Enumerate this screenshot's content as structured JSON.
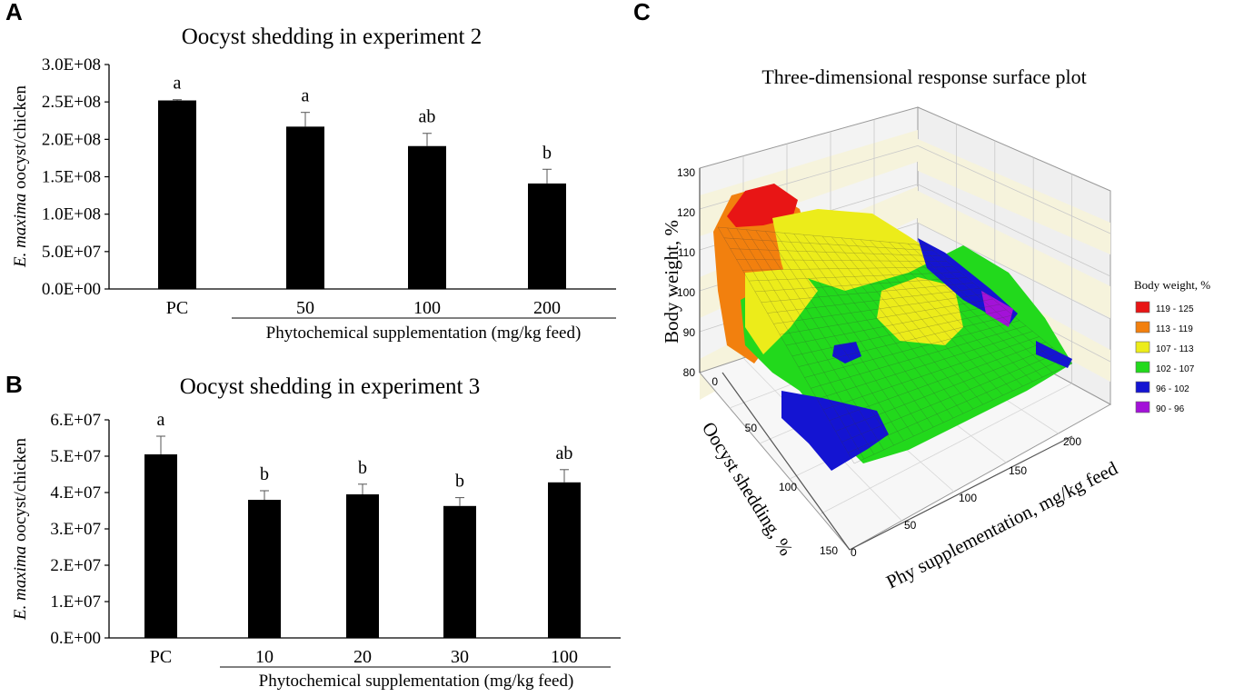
{
  "panels": {
    "a": "A",
    "b": "B",
    "c": "C"
  },
  "chart_data": [
    {
      "type": "bar",
      "title": "Oocyst shedding in experiment 2",
      "ylabel_italic": "E. maxima",
      "ylabel_rest": " oocyst/chicken",
      "xlabel": "Phytochemical  supplementation  (mg/kg  feed)",
      "categories": [
        "PC",
        "50",
        "100",
        "200"
      ],
      "values": [
        252000000,
        217000000,
        191000000,
        141000000
      ],
      "errors": [
        1000000,
        19000000,
        17000000,
        19000000
      ],
      "significance": [
        "a",
        "a",
        "ab",
        "b"
      ],
      "ylim": [
        0,
        300000000
      ],
      "yticks": [
        0,
        50000000,
        100000000,
        150000000,
        200000000,
        250000000,
        300000000
      ],
      "ytick_labels": [
        "0.0E+00",
        "5.0E+07",
        "1.0E+08",
        "1.5E+08",
        "2.0E+08",
        "2.5E+08",
        "3.0E+08"
      ]
    },
    {
      "type": "bar",
      "title": "Oocyst shedding in experiment 3",
      "ylabel_italic": "E. maxima",
      "ylabel_rest": " oocyst/chicken",
      "xlabel": "Phytochemical  supplementation  (mg/kg  feed)",
      "categories": [
        "PC",
        "10",
        "20",
        "30",
        "100"
      ],
      "values": [
        50500000,
        38000000,
        39500000,
        36300000,
        42800000
      ],
      "errors": [
        5000000,
        2500000,
        2800000,
        2300000,
        3500000
      ],
      "significance": [
        "a",
        "b",
        "b",
        "b",
        "ab"
      ],
      "ylim": [
        0,
        60000000
      ],
      "yticks": [
        0,
        10000000,
        20000000,
        30000000,
        40000000,
        50000000,
        60000000
      ],
      "ytick_labels": [
        "0.E+00",
        "1.E+07",
        "2.E+07",
        "3.E+07",
        "4.E+07",
        "5.E+07",
        "6.E+07"
      ]
    },
    {
      "type": "surface3d",
      "title": "Three-dimensional response surface plot",
      "zlabel": "Body weight, %",
      "ylabel": "Oocyst shedding, %",
      "xlabel": "Phy supplementation, mg/kg feed",
      "z_ticks": [
        "80",
        "90",
        "100",
        "110",
        "120",
        "130"
      ],
      "oocyst_ticks": [
        "0",
        "50",
        "100",
        "150"
      ],
      "phy_ticks": [
        "0",
        "50",
        "100",
        "150",
        "200"
      ],
      "legend_title": "Body weight, %",
      "legend": [
        {
          "label": "119 - 125",
          "color": "#e81515"
        },
        {
          "label": "113 - 119",
          "color": "#f2800e"
        },
        {
          "label": "107 - 113",
          "color": "#ecec1a"
        },
        {
          "label": "102 - 107",
          "color": "#22d91c"
        },
        {
          "label": "96 - 102",
          "color": "#1414d2"
        },
        {
          "label": "90 - 96",
          "color": "#a312d8"
        }
      ]
    }
  ]
}
